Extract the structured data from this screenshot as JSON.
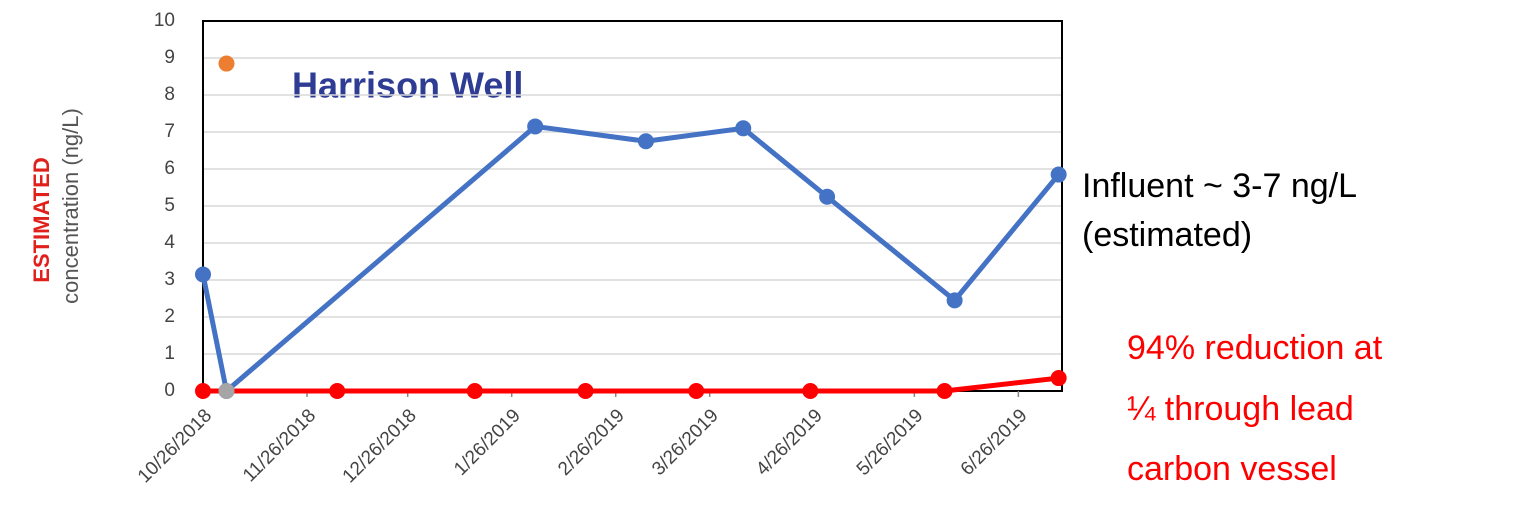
{
  "chart_data": {
    "type": "line",
    "title": "Harrison Well",
    "ylabel": [
      "ESTIMATED",
      "concentration  (ng/L)"
    ],
    "annotations": [
      "Influent ~ 3-7 ng/L",
      "(estimated)"
    ],
    "red_annotations": [
      "94% reduction at",
      "¼ through lead",
      "carbon vessel"
    ],
    "xlim": [
      "10/26/2018",
      "7/9/2019"
    ],
    "xticks": [
      "10/26/2018",
      "11/26/2018",
      "12/26/2018",
      "1/26/2019",
      "2/26/2019",
      "3/26/2019",
      "4/26/2019",
      "5/26/2019",
      "6/26/2019"
    ],
    "ylim": [
      0,
      10
    ],
    "yticks": [
      0,
      1,
      2,
      3,
      4,
      5,
      6,
      7,
      8,
      9,
      10
    ],
    "grid": true,
    "series": [
      {
        "color": "#4472c4",
        "x": [
          "10/26/2018",
          "11/2/2018",
          "2/2/2019",
          "3/7/2019",
          "4/5/2019",
          "4/30/2019",
          "6/7/2019",
          "7/8/2019"
        ],
        "values": [
          3.15,
          0,
          7.15,
          6.75,
          7.1,
          5.25,
          2.45,
          5.85
        ]
      },
      {
        "color": "#ff0000",
        "x": [
          "10/26/2018",
          "12/5/2018",
          "1/15/2019",
          "2/17/2019",
          "3/22/2019",
          "4/25/2019",
          "6/4/2019",
          "7/8/2019"
        ],
        "values": [
          0,
          0,
          0,
          0,
          0,
          0,
          0,
          0.35
        ]
      },
      {
        "color": "#a5a5a5",
        "x": [
          "11/2/2018"
        ],
        "values": [
          0
        ]
      },
      {
        "color": "#ed7d31",
        "x": [
          "11/2/2018"
        ],
        "values": [
          8.85
        ]
      }
    ]
  }
}
